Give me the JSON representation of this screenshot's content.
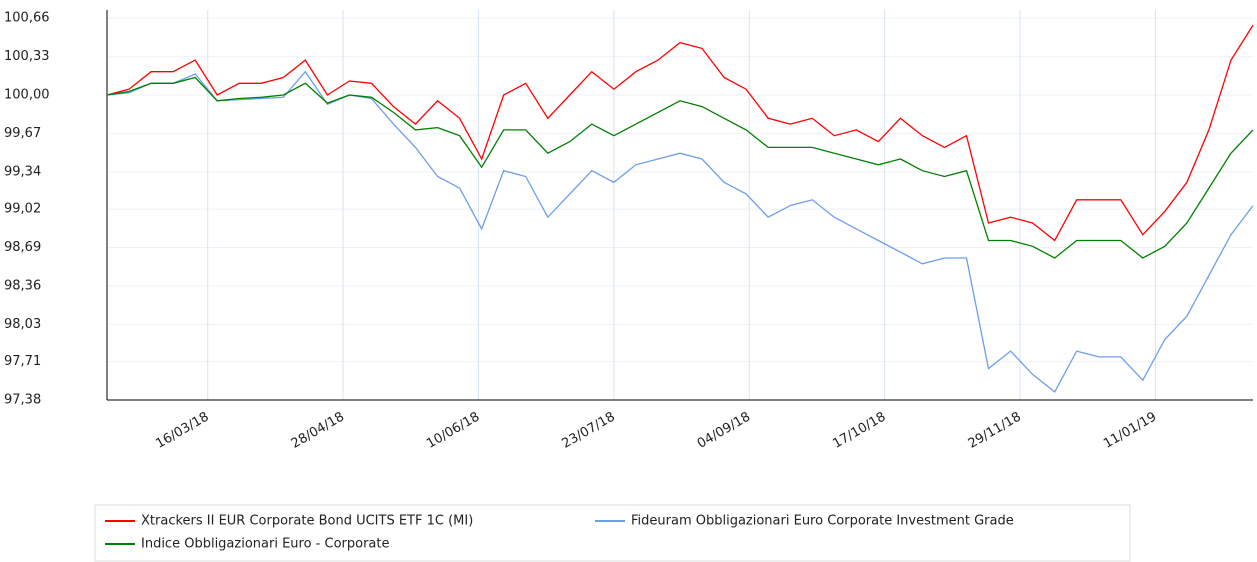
{
  "chart_data": {
    "type": "line",
    "x": [
      "2018-02-12",
      "2018-02-19",
      "2018-02-26",
      "2018-03-05",
      "2018-03-12",
      "2018-03-19",
      "2018-03-26",
      "2018-04-02",
      "2018-04-09",
      "2018-04-16",
      "2018-04-23",
      "2018-04-30",
      "2018-05-07",
      "2018-05-14",
      "2018-05-21",
      "2018-05-28",
      "2018-06-04",
      "2018-06-11",
      "2018-06-18",
      "2018-06-25",
      "2018-07-02",
      "2018-07-09",
      "2018-07-16",
      "2018-07-23",
      "2018-07-30",
      "2018-08-06",
      "2018-08-13",
      "2018-08-20",
      "2018-08-27",
      "2018-09-03",
      "2018-09-10",
      "2018-09-17",
      "2018-09-24",
      "2018-10-01",
      "2018-10-08",
      "2018-10-15",
      "2018-10-22",
      "2018-10-29",
      "2018-11-05",
      "2018-11-12",
      "2018-11-19",
      "2018-11-26",
      "2018-12-03",
      "2018-12-10",
      "2018-12-17",
      "2018-12-24",
      "2018-12-31",
      "2019-01-07",
      "2019-01-14",
      "2019-01-21",
      "2019-01-28",
      "2019-02-04",
      "2019-02-11"
    ],
    "series": [
      {
        "name": "Xtrackers II EUR Corporate Bond UCITS ETF 1C (MI)",
        "color": "#ff0000",
        "values": [
          100.0,
          100.05,
          100.2,
          100.2,
          100.3,
          100.0,
          100.1,
          100.1,
          100.15,
          100.3,
          100.0,
          100.12,
          100.1,
          99.9,
          99.75,
          99.95,
          99.8,
          99.45,
          100.0,
          100.1,
          99.8,
          100.0,
          100.2,
          100.05,
          100.2,
          100.3,
          100.45,
          100.4,
          100.15,
          100.05,
          99.8,
          99.75,
          99.8,
          99.65,
          99.7,
          99.6,
          99.8,
          99.65,
          99.55,
          99.65,
          98.9,
          98.95,
          98.9,
          98.75,
          99.1,
          99.1,
          99.1,
          98.8,
          99.0,
          99.25,
          99.7,
          100.3,
          100.6
        ]
      },
      {
        "name": "Fideuram Obbligazionari Euro Corporate Investment Grade",
        "color": "#6d9eeb",
        "values": [
          100.0,
          100.02,
          100.1,
          100.1,
          100.18,
          99.95,
          99.96,
          99.97,
          99.98,
          100.2,
          99.92,
          100.0,
          99.97,
          99.75,
          99.55,
          99.3,
          99.2,
          98.85,
          99.35,
          99.3,
          98.95,
          99.15,
          99.35,
          99.25,
          99.4,
          99.45,
          99.5,
          99.45,
          99.25,
          99.15,
          98.95,
          99.05,
          99.1,
          98.95,
          98.85,
          98.75,
          98.65,
          98.55,
          98.6,
          98.6,
          97.65,
          97.8,
          97.6,
          97.45,
          97.8,
          97.75,
          97.75,
          97.55,
          97.9,
          98.1,
          98.45,
          98.8,
          99.05
        ]
      },
      {
        "name": "Indice Obbligazionari Euro - Corporate",
        "color": "#008000",
        "values": [
          100.0,
          100.03,
          100.1,
          100.1,
          100.15,
          99.95,
          99.97,
          99.98,
          100.0,
          100.1,
          99.93,
          100.0,
          99.98,
          99.85,
          99.7,
          99.72,
          99.65,
          99.38,
          99.7,
          99.7,
          99.5,
          99.6,
          99.75,
          99.65,
          99.75,
          99.85,
          99.95,
          99.9,
          99.8,
          99.7,
          99.55,
          99.55,
          99.55,
          99.5,
          99.45,
          99.4,
          99.45,
          99.35,
          99.3,
          99.35,
          98.75,
          98.75,
          98.7,
          98.6,
          98.75,
          98.75,
          98.75,
          98.6,
          98.7,
          98.9,
          99.2,
          99.5,
          99.7
        ]
      }
    ],
    "xlim": [
      "2018-02-12",
      "2019-02-11"
    ],
    "xticks": [
      {
        "value": "2018-03-16",
        "label": "16/03/18"
      },
      {
        "value": "2018-04-28",
        "label": "28/04/18"
      },
      {
        "value": "2018-06-10",
        "label": "10/06/18"
      },
      {
        "value": "2018-07-23",
        "label": "23/07/18"
      },
      {
        "value": "2018-09-04",
        "label": "04/09/18"
      },
      {
        "value": "2018-10-17",
        "label": "17/10/18"
      },
      {
        "value": "2018-11-29",
        "label": "29/11/18"
      },
      {
        "value": "2019-01-11",
        "label": "11/01/19"
      }
    ],
    "ylim": [
      97.38,
      100.73
    ],
    "yticks": [
      {
        "value": 97.38,
        "label": "97,38"
      },
      {
        "value": 97.71,
        "label": "97,71"
      },
      {
        "value": 98.03,
        "label": "98,03"
      },
      {
        "value": 98.36,
        "label": "98,36"
      },
      {
        "value": 98.69,
        "label": "98,69"
      },
      {
        "value": 99.02,
        "label": "99,02"
      },
      {
        "value": 99.34,
        "label": "99,34"
      },
      {
        "value": 99.67,
        "label": "99,67"
      },
      {
        "value": 100.0,
        "label": "100,00"
      },
      {
        "value": 100.33,
        "label": "100,33"
      },
      {
        "value": 100.66,
        "label": "100,66"
      }
    ],
    "grid": true,
    "legend": "bottom"
  }
}
